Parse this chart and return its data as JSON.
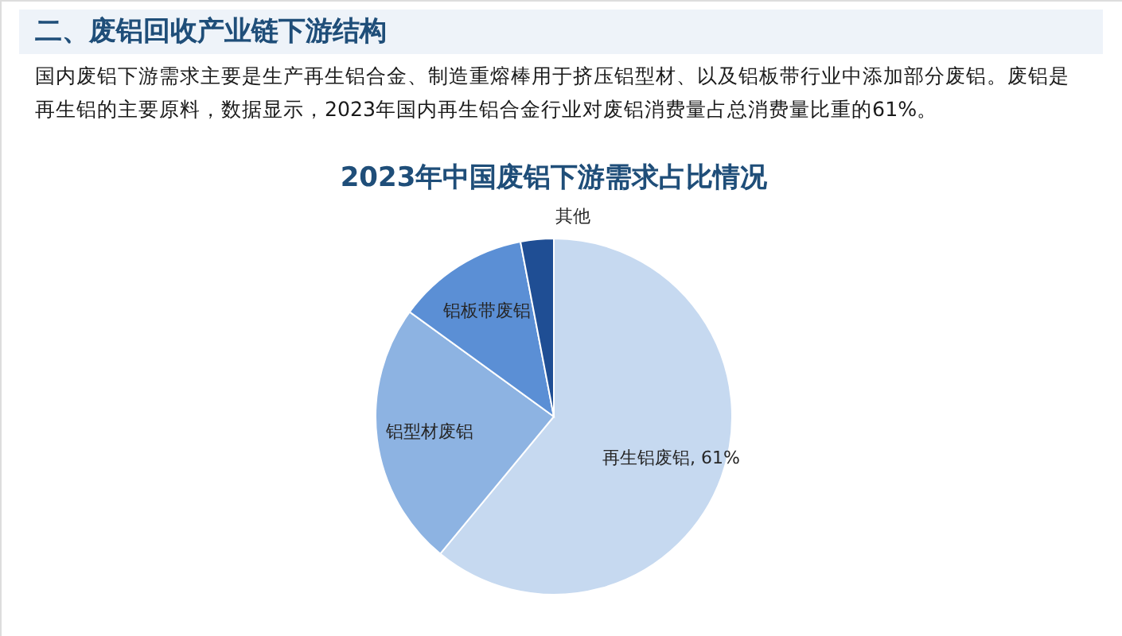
{
  "chart_data": {
    "type": "pie",
    "title": "2023年中国废铝下游需求占比情况",
    "subtitle": "国内废铝下游需求主要是生产再生铝合金、制造重熔棒用于挤压铝型材、以及铝板带行业中添加部分废铝。废铝是再生铝的主要原料，数据显示，2023年国内再生铝合金行业对废铝消费量占总消费量比重的61%。",
    "annotations": [
      "二、废铝回收产业链下游结构"
    ],
    "categories": [
      "再生铝废铝",
      "铝型材废铝",
      "铝板带废铝",
      "其他"
    ],
    "values": [
      61,
      24,
      12,
      3
    ],
    "colors": [
      "#c6d9f0",
      "#8db3e2",
      "#5b8fd5",
      "#1f4e94"
    ],
    "value_labels": [
      "61%",
      null,
      null,
      null
    ]
  }
}
